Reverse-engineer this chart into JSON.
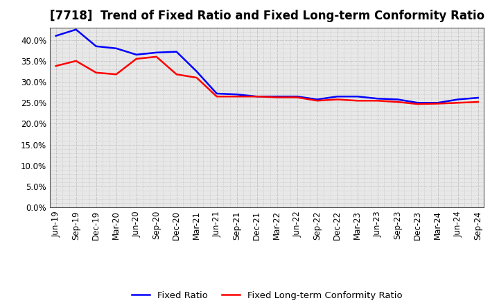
{
  "title": "[7718]  Trend of Fixed Ratio and Fixed Long-term Conformity Ratio",
  "x_labels": [
    "Jun-19",
    "Sep-19",
    "Dec-19",
    "Mar-20",
    "Jun-20",
    "Sep-20",
    "Dec-20",
    "Mar-21",
    "Jun-21",
    "Sep-21",
    "Dec-21",
    "Mar-22",
    "Jun-22",
    "Sep-22",
    "Dec-22",
    "Mar-23",
    "Jun-23",
    "Sep-23",
    "Dec-23",
    "Mar-24",
    "Jun-24",
    "Sep-24"
  ],
  "fixed_ratio": [
    41.0,
    42.5,
    38.5,
    38.0,
    36.5,
    37.0,
    37.2,
    32.5,
    27.2,
    27.0,
    26.5,
    26.5,
    26.5,
    25.8,
    26.5,
    26.5,
    26.0,
    25.8,
    25.0,
    25.0,
    25.8,
    26.2
  ],
  "fixed_lt_ratio": [
    33.8,
    35.0,
    32.2,
    31.8,
    35.5,
    36.0,
    31.8,
    31.0,
    26.5,
    26.5,
    26.5,
    26.3,
    26.3,
    25.5,
    25.8,
    25.5,
    25.5,
    25.2,
    24.7,
    24.8,
    25.0,
    25.2
  ],
  "ylim": [
    0,
    43
  ],
  "yticks": [
    0,
    5,
    10,
    15,
    20,
    25,
    30,
    35,
    40
  ],
  "line_color_fixed": "#0000FF",
  "line_color_ltcr": "#FF0000",
  "line_width": 1.8,
  "background_color": "#FFFFFF",
  "plot_bg_color": "#E8E8E8",
  "grid_color": "#888888",
  "legend_fixed": "Fixed Ratio",
  "legend_lt": "Fixed Long-term Conformity Ratio",
  "title_fontsize": 12,
  "tick_fontsize": 8.5,
  "legend_fontsize": 9.5
}
